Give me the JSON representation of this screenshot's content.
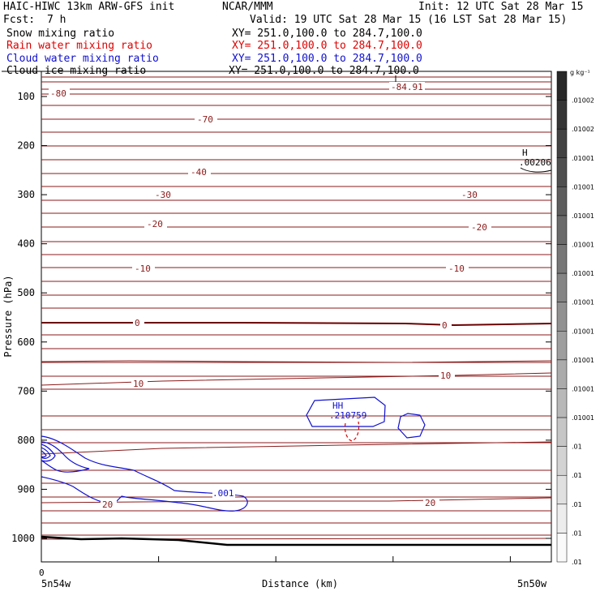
{
  "header": {
    "model": "HAIC-HIWC 13km ARW-GFS init",
    "org": "NCAR/MMM",
    "init": "Init: 12 UTC Sat 28 Mar 15",
    "fcst_label": "Fcst:",
    "fcst_value": "7 h",
    "valid": "Valid: 19 UTC Sat 28 Mar 15 (16 LST Sat 28 Mar 15)"
  },
  "fields": [
    {
      "name": "Snow mixing ratio",
      "xy": "XY= 251.0,100.0 to 284.7,100.0",
      "color": "#000000"
    },
    {
      "name": "Rain water mixing ratio",
      "xy": "XY= 251.0,100.0 to 284.7,100.0",
      "color": "#e00000"
    },
    {
      "name": "Cloud water mixing ratio",
      "xy": "XY= 251.0,100.0 to 284.7,100.0",
      "color": "#1010d0"
    },
    {
      "name": "Cloud ice mixing ratio",
      "xy": "XY= 251.0,100.0 to 284.7,100.0",
      "color": "#000000"
    }
  ],
  "colorbar": {
    "unit": "g kg⁻¹",
    "labels": [
      ".01002",
      ".01002",
      ".01001",
      ".01001",
      ".01001",
      ".01001",
      ".01001",
      ".01001",
      ".01001",
      ".01001",
      ".01001",
      ".01001",
      ".01",
      ".01",
      ".01",
      ".01",
      ".01"
    ]
  },
  "chart_data": {
    "type": "contour",
    "ylabel": "Pressure (hPa)",
    "xlabel": "Distance (km)",
    "y_ticks": [
      100,
      200,
      300,
      400,
      500,
      600,
      700,
      800,
      900,
      1000
    ],
    "x_tick_zero": "0",
    "x_left_label": "5n54w",
    "x_right_label": "5n50w",
    "ylim": [
      1045,
      10
    ],
    "temperature_contours": [
      {
        "value": -80,
        "label": "-80"
      },
      {
        "value": -70,
        "label": "-70"
      },
      {
        "value": -40,
        "label": "-40"
      },
      {
        "value": -30,
        "label": "-30"
      },
      {
        "value": -20,
        "label": "-20"
      },
      {
        "value": -10,
        "label": "-10"
      },
      {
        "value": 0,
        "label": "0"
      },
      {
        "value": 10,
        "label": "10"
      },
      {
        "value": 20,
        "label": "20"
      }
    ],
    "annotations": [
      {
        "text": "-84.91",
        "color": "#8b1a1a"
      },
      {
        "text": "H",
        "color": "#000000"
      },
      {
        "text": ".00206",
        "color": "#000000"
      },
      {
        "text": "HH",
        "color": "#1010d0"
      },
      {
        "text": ".210759",
        "color": "#1010d0"
      },
      {
        "text": ".001",
        "color": "#1010d0"
      }
    ]
  }
}
